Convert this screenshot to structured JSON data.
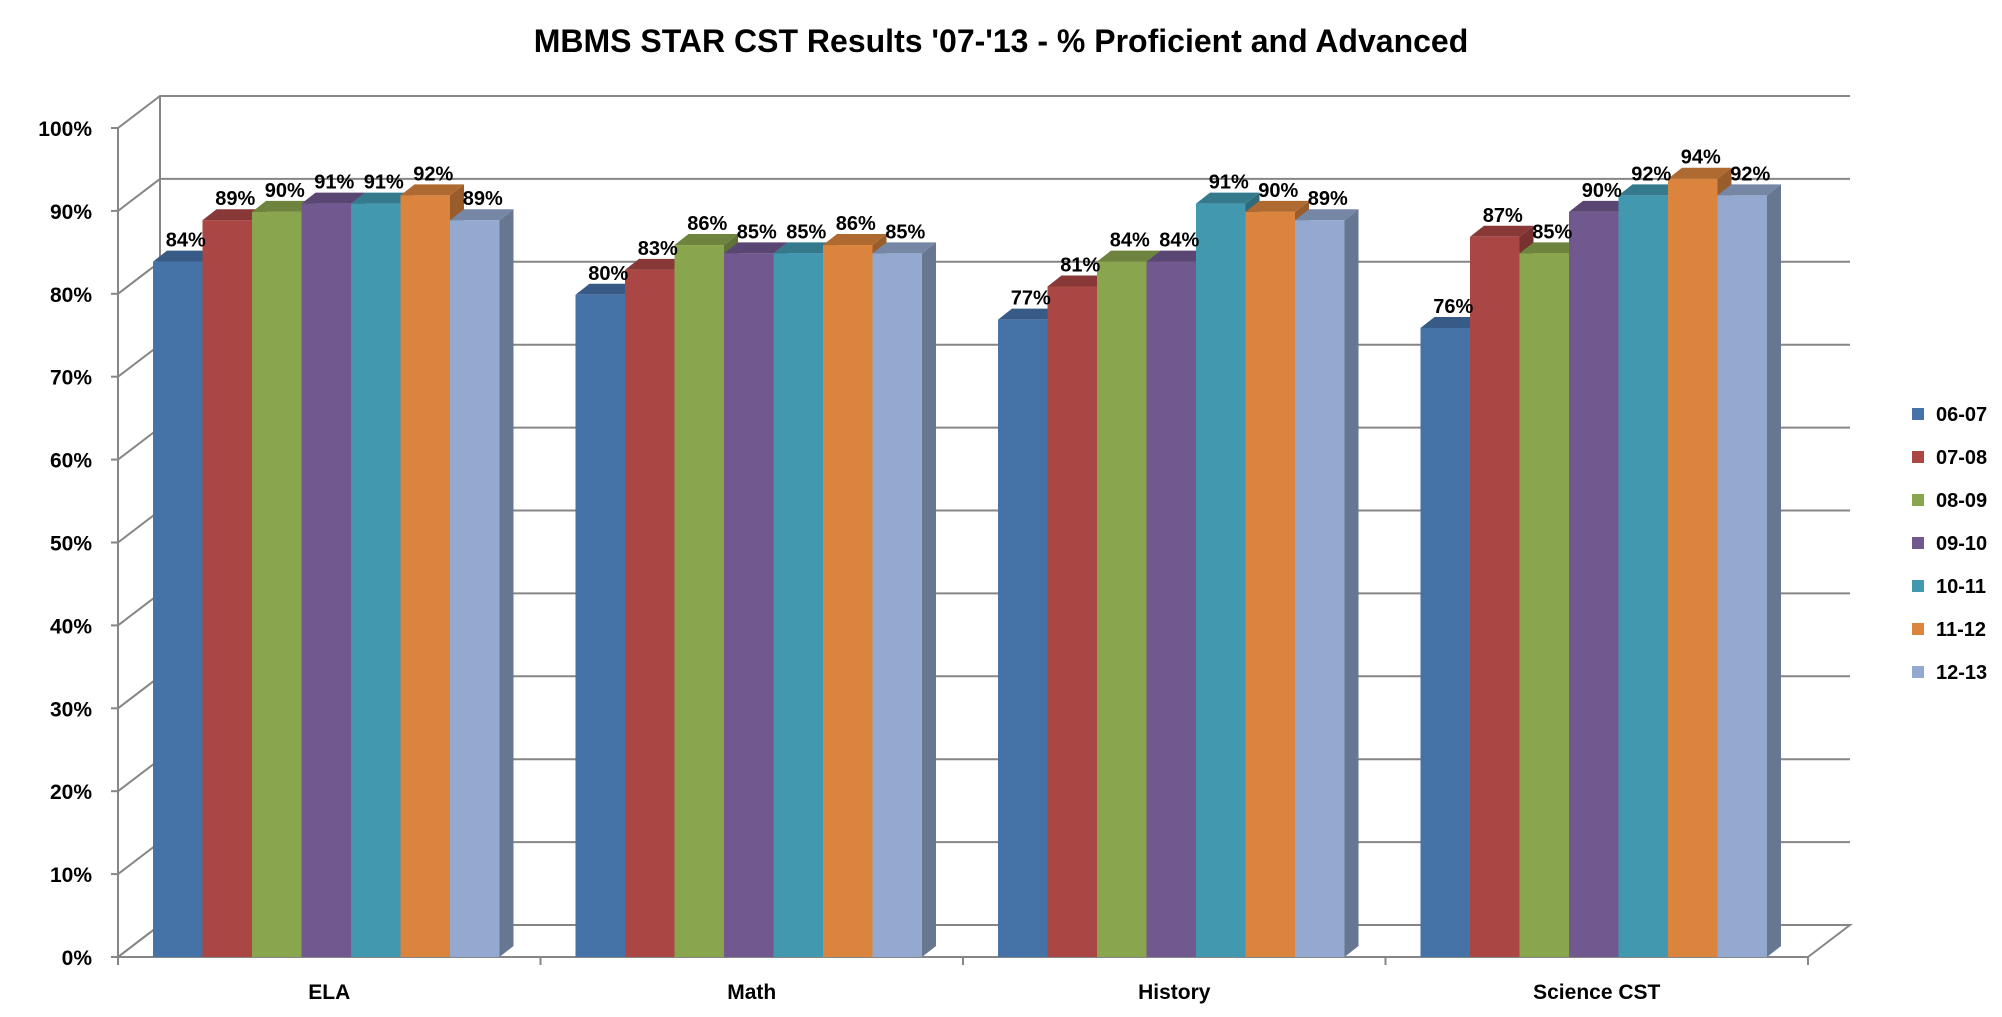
{
  "chart_data": {
    "type": "bar",
    "title": "MBMS STAR CST Results '07-'13 - % Proficient and Advanced",
    "xlabel": "",
    "ylabel": "",
    "ylim": [
      0,
      100
    ],
    "yticks": [
      "0%",
      "10%",
      "20%",
      "30%",
      "40%",
      "50%",
      "60%",
      "70%",
      "80%",
      "90%",
      "100%"
    ],
    "categories": [
      "ELA",
      "Math",
      "History",
      "Science CST"
    ],
    "grid": true,
    "style": "3d-clustered-column",
    "legend_position": "right",
    "data_labels": true,
    "value_suffix": "%",
    "series": [
      {
        "name": "06-07",
        "color": "#4572A7",
        "values": [
          84,
          80,
          77,
          76
        ]
      },
      {
        "name": "07-08",
        "color": "#AA4643",
        "values": [
          89,
          83,
          81,
          87
        ]
      },
      {
        "name": "08-09",
        "color": "#89A54E",
        "values": [
          90,
          86,
          84,
          85
        ]
      },
      {
        "name": "09-10",
        "color": "#71588F",
        "values": [
          91,
          85,
          84,
          90
        ]
      },
      {
        "name": "10-11",
        "color": "#4198AF",
        "values": [
          91,
          85,
          91,
          92
        ]
      },
      {
        "name": "11-12",
        "color": "#DB843D",
        "values": [
          92,
          86,
          90,
          94
        ]
      },
      {
        "name": "12-13",
        "color": "#93A9CF",
        "values": [
          89,
          85,
          89,
          92
        ]
      }
    ]
  }
}
